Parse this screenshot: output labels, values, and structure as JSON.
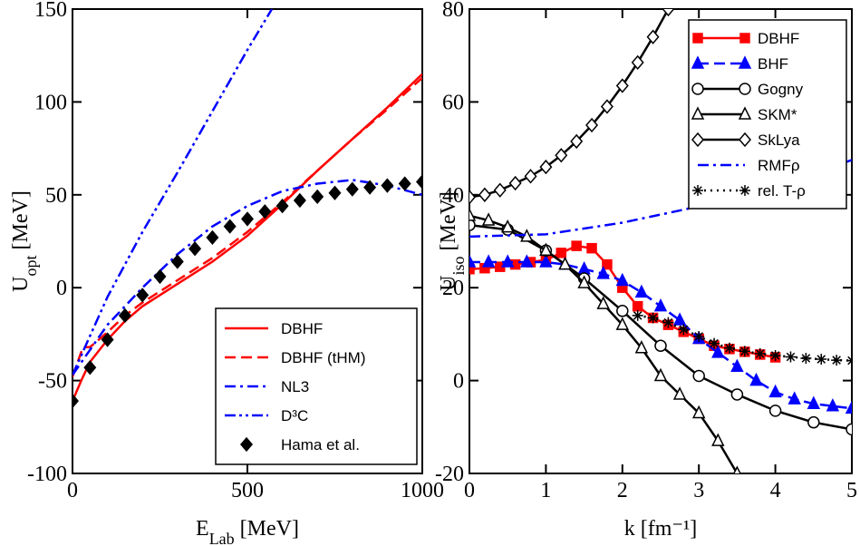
{
  "chart_data": [
    {
      "type": "line",
      "xlabel": [
        "E",
        "Lab",
        " [MeV]"
      ],
      "ylabel": [
        "U",
        "opt",
        " [MeV]"
      ],
      "xlim": [
        0,
        1000
      ],
      "ylim": [
        -100,
        150
      ],
      "xticks": [
        0,
        500,
        1000
      ],
      "yticks": [
        -100,
        -50,
        0,
        50,
        100,
        150
      ],
      "legend": "lower right",
      "series": [
        {
          "name": "DBHF",
          "color": "#ff0000",
          "style": "solid",
          "marker": "none",
          "x": [
            0,
            25,
            50,
            100,
            150,
            200,
            300,
            400,
            500,
            600,
            700,
            800,
            900,
            1000
          ],
          "values": [
            -61,
            -50,
            -40,
            -28,
            -18,
            -10,
            2,
            14,
            28,
            45,
            63,
            80,
            97,
            115
          ]
        },
        {
          "name": "DBHF (tHM)",
          "color": "#ff0000",
          "style": "dashed",
          "marker": "none",
          "x": [
            0,
            30,
            50,
            100,
            150,
            200,
            300,
            400,
            500,
            600,
            700,
            800,
            900,
            1000
          ],
          "values": [
            -48,
            -32,
            -32,
            -24,
            -15,
            -8,
            4,
            16,
            30,
            46,
            63,
            80,
            96,
            113
          ]
        },
        {
          "name": "NL3",
          "color": "#0000ff",
          "style": "dashdot",
          "marker": "none",
          "x": [
            0,
            100,
            200,
            300,
            400,
            500,
            600,
            700,
            800,
            900,
            1000
          ],
          "values": [
            -47,
            -20,
            0,
            18,
            33,
            44,
            52,
            56,
            58,
            55,
            50
          ]
        },
        {
          "name": "D³C",
          "color": "#0000ff",
          "style": "dashdotdot",
          "marker": "none",
          "x": [
            0,
            100,
            200,
            300,
            400,
            500,
            570
          ],
          "values": [
            -47,
            -5,
            30,
            62,
            95,
            128,
            150
          ]
        },
        {
          "name": "Hama et al.",
          "color": "#000000",
          "style": "none",
          "marker": "diamond",
          "filled": true,
          "x": [
            0,
            50,
            100,
            150,
            200,
            250,
            300,
            350,
            400,
            450,
            500,
            550,
            600,
            650,
            700,
            750,
            800,
            850,
            900,
            950,
            1000
          ],
          "values": [
            -61,
            -43,
            -28,
            -15,
            -4,
            6,
            14,
            21,
            27,
            33,
            37,
            41,
            44,
            47,
            49,
            51,
            53,
            54,
            55,
            56,
            57
          ]
        }
      ]
    },
    {
      "type": "line",
      "xlabel": [
        "k [fm⁻¹]",
        "",
        ""
      ],
      "ylabel": [
        "U",
        "iso",
        " [MeV]"
      ],
      "xlim": [
        0,
        5
      ],
      "ylim": [
        -20,
        80
      ],
      "xticks": [
        0,
        1,
        2,
        3,
        4,
        5
      ],
      "yticks": [
        -20,
        0,
        20,
        40,
        60,
        80
      ],
      "legend": "upper right",
      "series": [
        {
          "name": "DBHF",
          "color": "#ff0000",
          "style": "solid",
          "marker": "square",
          "filled": true,
          "x": [
            0,
            0.2,
            0.4,
            0.6,
            0.8,
            1.0,
            1.2,
            1.4,
            1.6,
            1.8,
            2.0,
            2.2,
            2.4,
            2.6,
            2.8,
            3.0,
            3.2,
            3.4,
            3.6,
            3.8,
            4.0
          ],
          "values": [
            24,
            24.2,
            24.5,
            25,
            25.5,
            26,
            27.5,
            29,
            28.5,
            25,
            20,
            16,
            13.5,
            12,
            10.5,
            9,
            7.5,
            6.8,
            6.2,
            5.6,
            5
          ]
        },
        {
          "name": "BHF",
          "color": "#0000ff",
          "style": "dashed",
          "marker": "triangle",
          "filled": true,
          "x": [
            0,
            0.25,
            0.5,
            0.75,
            1.0,
            1.25,
            1.5,
            1.75,
            2.0,
            2.25,
            2.5,
            2.75,
            3.0,
            3.25,
            3.5,
            3.75,
            4.0,
            4.25,
            4.5,
            4.75,
            5.0
          ],
          "values": [
            25.5,
            25.5,
            25.5,
            25.5,
            25.5,
            25,
            24,
            23,
            21.5,
            19,
            16,
            13,
            9,
            6,
            3,
            0,
            -2.5,
            -4,
            -5,
            -5.5,
            -6
          ]
        },
        {
          "name": "Gogny",
          "color": "#000000",
          "style": "solid",
          "marker": "circle",
          "filled": false,
          "x": [
            0,
            0.5,
            1,
            1.5,
            2,
            2.5,
            3,
            3.5,
            4,
            4.5,
            5
          ],
          "values": [
            33.5,
            32.5,
            28,
            22,
            15,
            7.5,
            1,
            -3,
            -6.5,
            -9,
            -10.5
          ]
        },
        {
          "name": "SKM*",
          "color": "#000000",
          "style": "solid",
          "marker": "triangle",
          "filled": false,
          "x": [
            0,
            0.25,
            0.5,
            0.75,
            1,
            1.25,
            1.5,
            1.75,
            2,
            2.25,
            2.5,
            2.75,
            3,
            3.25,
            3.5
          ],
          "values": [
            35.5,
            34.5,
            33,
            31,
            28,
            25,
            21,
            16.5,
            12,
            7,
            1,
            -3,
            -7,
            -13,
            -20
          ]
        },
        {
          "name": "SkLya",
          "color": "#000000",
          "style": "solid",
          "marker": "diamond",
          "filled": false,
          "x": [
            0,
            0.2,
            0.4,
            0.6,
            0.8,
            1.0,
            1.2,
            1.4,
            1.6,
            1.8,
            2.0,
            2.2,
            2.4,
            2.6
          ],
          "values": [
            39.5,
            40,
            41,
            42.5,
            44,
            46,
            48.5,
            51.5,
            55,
            59,
            63.5,
            68.5,
            74,
            80
          ]
        },
        {
          "name": "RMFρ",
          "color": "#0000ff",
          "style": "dashdot",
          "marker": "none",
          "x": [
            0,
            1,
            2,
            3,
            4,
            5
          ],
          "values": [
            31,
            31.5,
            34,
            37.5,
            42,
            47.5
          ]
        },
        {
          "name": "rel. T-ρ",
          "color": "#000000",
          "style": "dotted",
          "marker": "star",
          "filled": false,
          "x": [
            2.2,
            2.4,
            2.6,
            2.8,
            3.0,
            3.2,
            3.4,
            3.6,
            3.8,
            4.0,
            4.2,
            4.4,
            4.6,
            4.8,
            5.0
          ],
          "values": [
            14,
            13.5,
            12.5,
            11,
            9.5,
            8,
            7,
            6.3,
            5.8,
            5.4,
            5.1,
            4.8,
            4.6,
            4.4,
            4.3
          ]
        }
      ]
    }
  ]
}
